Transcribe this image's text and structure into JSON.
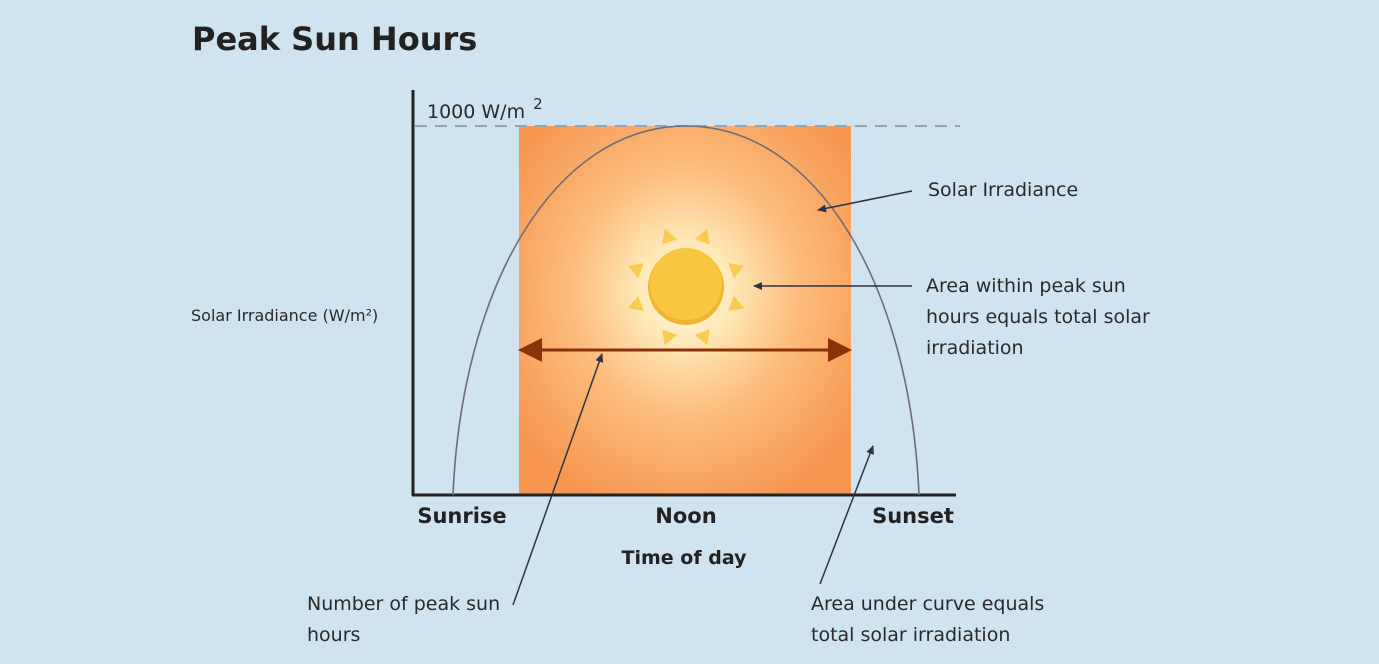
{
  "title": "Peak Sun Hours",
  "y_axis": {
    "label": "Solar Irradiance (W/m²)",
    "peak_label": "1000 W/m",
    "peak_superscript": "2"
  },
  "x_axis": {
    "title": "Time of day",
    "ticks": [
      "Sunrise",
      "Noon",
      "Sunset"
    ]
  },
  "annotations": {
    "curve": "Solar Irradiance",
    "rectangle_area": [
      "Area within peak sun",
      "hours equals total solar",
      "irradiation"
    ],
    "peak_hours": [
      "Number of peak sun",
      "hours"
    ],
    "area_under_curve": [
      "Area under curve equals",
      "total solar irradiation"
    ]
  },
  "colors": {
    "background": "#cfe3f0",
    "rectangle_outer": "#f89a52",
    "rectangle_center": "#fff6d8",
    "sun": "#f8c43a",
    "double_arrow": "#8a3208",
    "curve": "#6d6d78"
  },
  "icons": [
    "sun-icon"
  ]
}
